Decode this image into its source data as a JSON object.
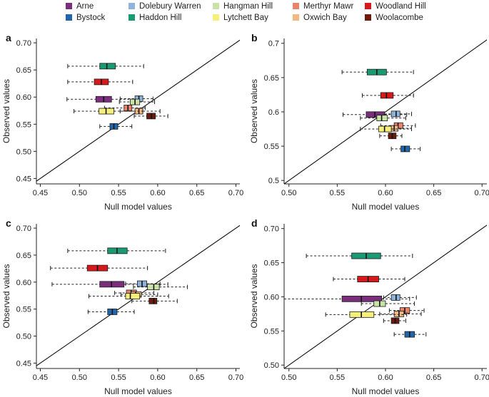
{
  "legend": [
    {
      "name": "Arne",
      "color": "#7b2d7e"
    },
    {
      "name": "Dolebury Warren",
      "color": "#8fb4dc"
    },
    {
      "name": "Hangman Hill",
      "color": "#c9e3a6"
    },
    {
      "name": "Merthyr Mawr",
      "color": "#e8846b"
    },
    {
      "name": "Woodland Hill",
      "color": "#d7191c"
    },
    {
      "name": "Bystock",
      "color": "#2166ac"
    },
    {
      "name": "Haddon Hill",
      "color": "#1a9a73"
    },
    {
      "name": "Lytchett Bay",
      "color": "#f5f07a"
    },
    {
      "name": "Oxwich Bay",
      "color": "#f3b784"
    },
    {
      "name": "Woolacombe",
      "color": "#6b1a0c"
    }
  ],
  "chart_data": [
    {
      "panel": "a",
      "type": "boxplot",
      "xlabel": "Null model values",
      "ylabel": "Observed values",
      "xlim": [
        0.445,
        0.705
      ],
      "ylim": [
        0.44,
        0.708
      ],
      "xticks": [
        "0.45",
        "0.50",
        "0.55",
        "0.60",
        "0.65",
        "0.70"
      ],
      "yticks": [
        "0.45",
        "0.50",
        "0.55",
        "0.60",
        "0.65",
        "0.70"
      ],
      "series": [
        {
          "site": "Haddon Hill",
          "y": 0.657,
          "min": 0.485,
          "q1": 0.526,
          "median": 0.535,
          "q3": 0.546,
          "max": 0.582
        },
        {
          "site": "Woodland Hill",
          "y": 0.628,
          "min": 0.485,
          "q1": 0.519,
          "median": 0.528,
          "q3": 0.537,
          "max": 0.568
        },
        {
          "site": "Arne",
          "y": 0.596,
          "min": 0.484,
          "q1": 0.521,
          "median": 0.531,
          "q3": 0.541,
          "max": 0.578
        },
        {
          "site": "Dolebury Warren",
          "y": 0.597,
          "min": 0.552,
          "q1": 0.571,
          "median": 0.576,
          "q3": 0.581,
          "max": 0.594
        },
        {
          "site": "Hangman Hill",
          "y": 0.591,
          "min": 0.551,
          "q1": 0.565,
          "median": 0.571,
          "q3": 0.577,
          "max": 0.596
        },
        {
          "site": "Merthyr Mawr",
          "y": 0.58,
          "min": 0.532,
          "q1": 0.557,
          "median": 0.562,
          "q3": 0.567,
          "max": 0.584
        },
        {
          "site": "Oxwich Bay",
          "y": 0.574,
          "min": 0.552,
          "q1": 0.571,
          "median": 0.576,
          "q3": 0.581,
          "max": 0.603
        },
        {
          "site": "Lytchett Bay",
          "y": 0.574,
          "min": 0.493,
          "q1": 0.525,
          "median": 0.534,
          "q3": 0.544,
          "max": 0.581
        },
        {
          "site": "Woolacombe",
          "y": 0.565,
          "min": 0.57,
          "q1": 0.586,
          "median": 0.592,
          "q3": 0.597,
          "max": 0.613
        },
        {
          "site": "Bystock",
          "y": 0.546,
          "min": 0.526,
          "q1": 0.539,
          "median": 0.544,
          "q3": 0.549,
          "max": 0.567
        }
      ]
    },
    {
      "panel": "b",
      "type": "boxplot",
      "xlabel": "Null model values",
      "ylabel": "Observed values",
      "xlim": [
        0.495,
        0.705
      ],
      "ylim": [
        0.495,
        0.707
      ],
      "xticks": [
        "0.50",
        "0.55",
        "0.60",
        "0.65",
        "0.70"
      ],
      "yticks": [
        "0.5",
        "0.55",
        "0.6",
        "0.65",
        "0.7"
      ],
      "series": [
        {
          "site": "Haddon Hill",
          "y": 0.658,
          "min": 0.555,
          "q1": 0.581,
          "median": 0.591,
          "q3": 0.601,
          "max": 0.629
        },
        {
          "site": "Woodland Hill",
          "y": 0.624,
          "min": 0.576,
          "q1": 0.595,
          "median": 0.601,
          "q3": 0.608,
          "max": 0.629
        },
        {
          "site": "Arne",
          "y": 0.596,
          "min": 0.556,
          "q1": 0.58,
          "median": 0.589,
          "q3": 0.599,
          "max": 0.622
        },
        {
          "site": "Dolebury Warren",
          "y": 0.597,
          "min": 0.599,
          "q1": 0.606,
          "median": 0.611,
          "q3": 0.615,
          "max": 0.627
        },
        {
          "site": "Hangman Hill",
          "y": 0.591,
          "min": 0.574,
          "q1": 0.591,
          "median": 0.596,
          "q3": 0.602,
          "max": 0.621
        },
        {
          "site": "Merthyr Mawr",
          "y": 0.58,
          "min": 0.595,
          "q1": 0.609,
          "median": 0.613,
          "q3": 0.618,
          "max": 0.631
        },
        {
          "site": "Oxwich Bay",
          "y": 0.576,
          "min": 0.594,
          "q1": 0.605,
          "median": 0.609,
          "q3": 0.613,
          "max": 0.627
        },
        {
          "site": "Lytchett Bay",
          "y": 0.575,
          "min": 0.574,
          "q1": 0.593,
          "median": 0.599,
          "q3": 0.606,
          "max": 0.627
        },
        {
          "site": "Woolacombe",
          "y": 0.565,
          "min": 0.594,
          "q1": 0.603,
          "median": 0.607,
          "q3": 0.611,
          "max": 0.617
        },
        {
          "site": "Bystock",
          "y": 0.546,
          "min": 0.606,
          "q1": 0.616,
          "median": 0.62,
          "q3": 0.625,
          "max": 0.636
        }
      ]
    },
    {
      "panel": "c",
      "type": "boxplot",
      "xlabel": "Null model values",
      "ylabel": "Observed values",
      "xlim": [
        0.445,
        0.705
      ],
      "ylim": [
        0.44,
        0.708
      ],
      "xticks": [
        "0.45",
        "0.50",
        "0.55",
        "0.60",
        "0.65",
        "0.70"
      ],
      "yticks": [
        "0.45",
        "0.50",
        "0.55",
        "0.60",
        "0.65",
        "0.70"
      ],
      "series": [
        {
          "site": "Haddon Hill",
          "y": 0.658,
          "min": 0.485,
          "q1": 0.536,
          "median": 0.548,
          "q3": 0.561,
          "max": 0.61
        },
        {
          "site": "Woodland Hill",
          "y": 0.626,
          "min": 0.463,
          "q1": 0.51,
          "median": 0.523,
          "q3": 0.536,
          "max": 0.587
        },
        {
          "site": "Arne",
          "y": 0.596,
          "min": 0.465,
          "q1": 0.526,
          "median": 0.541,
          "q3": 0.557,
          "max": 0.613
        },
        {
          "site": "Dolebury Warren",
          "y": 0.597,
          "min": 0.559,
          "q1": 0.574,
          "median": 0.58,
          "q3": 0.586,
          "max": 0.603
        },
        {
          "site": "Hangman Hill",
          "y": 0.591,
          "min": 0.569,
          "q1": 0.587,
          "median": 0.595,
          "q3": 0.602,
          "max": 0.638
        },
        {
          "site": "Merthyr Mawr",
          "y": 0.58,
          "min": 0.545,
          "q1": 0.56,
          "median": 0.566,
          "q3": 0.573,
          "max": 0.595
        },
        {
          "site": "Oxwich Bay",
          "y": 0.577,
          "min": 0.553,
          "q1": 0.566,
          "median": 0.572,
          "q3": 0.579,
          "max": 0.6
        },
        {
          "site": "Lytchett Bay",
          "y": 0.574,
          "min": 0.512,
          "q1": 0.559,
          "median": 0.565,
          "q3": 0.577,
          "max": 0.614
        },
        {
          "site": "Woolacombe",
          "y": 0.565,
          "min": 0.567,
          "q1": 0.589,
          "median": 0.595,
          "q3": 0.599,
          "max": 0.625
        },
        {
          "site": "Bystock",
          "y": 0.545,
          "min": 0.511,
          "q1": 0.536,
          "median": 0.542,
          "q3": 0.548,
          "max": 0.57
        }
      ]
    },
    {
      "panel": "d",
      "type": "boxplot",
      "xlabel": "Null model values",
      "ylabel": "Observed values",
      "xlim": [
        0.495,
        0.705
      ],
      "ylim": [
        0.495,
        0.707
      ],
      "xticks": [
        "0.50",
        "0.55",
        "0.60",
        "0.65",
        "0.70"
      ],
      "yticks": [
        "0.50",
        "0.55",
        "0.60",
        "0.65",
        "0.70"
      ],
      "series": [
        {
          "site": "Haddon Hill",
          "y": 0.66,
          "min": 0.518,
          "q1": 0.565,
          "median": 0.58,
          "q3": 0.595,
          "max": 0.628
        },
        {
          "site": "Woodland Hill",
          "y": 0.626,
          "min": 0.546,
          "q1": 0.571,
          "median": 0.582,
          "q3": 0.593,
          "max": 0.62
        },
        {
          "site": "Arne",
          "y": 0.597,
          "min": 0.495,
          "q1": 0.555,
          "median": 0.575,
          "q3": 0.596,
          "max": 0.625
        },
        {
          "site": "Dolebury Warren",
          "y": 0.599,
          "min": 0.598,
          "q1": 0.606,
          "median": 0.611,
          "q3": 0.615,
          "max": 0.632
        },
        {
          "site": "Hangman Hill",
          "y": 0.59,
          "min": 0.575,
          "q1": 0.588,
          "median": 0.594,
          "q3": 0.6,
          "max": 0.63
        },
        {
          "site": "Merthyr Mawr",
          "y": 0.58,
          "min": 0.604,
          "q1": 0.615,
          "median": 0.62,
          "q3": 0.625,
          "max": 0.64
        },
        {
          "site": "Oxwich Bay",
          "y": 0.575,
          "min": 0.594,
          "q1": 0.609,
          "median": 0.614,
          "q3": 0.619,
          "max": 0.637
        },
        {
          "site": "Lytchett Bay",
          "y": 0.574,
          "min": 0.538,
          "q1": 0.563,
          "median": 0.575,
          "q3": 0.588,
          "max": 0.622
        },
        {
          "site": "Woolacombe",
          "y": 0.565,
          "min": 0.598,
          "q1": 0.606,
          "median": 0.61,
          "q3": 0.614,
          "max": 0.621
        },
        {
          "site": "Bystock",
          "y": 0.545,
          "min": 0.609,
          "q1": 0.62,
          "median": 0.625,
          "q3": 0.63,
          "max": 0.642
        }
      ]
    }
  ]
}
